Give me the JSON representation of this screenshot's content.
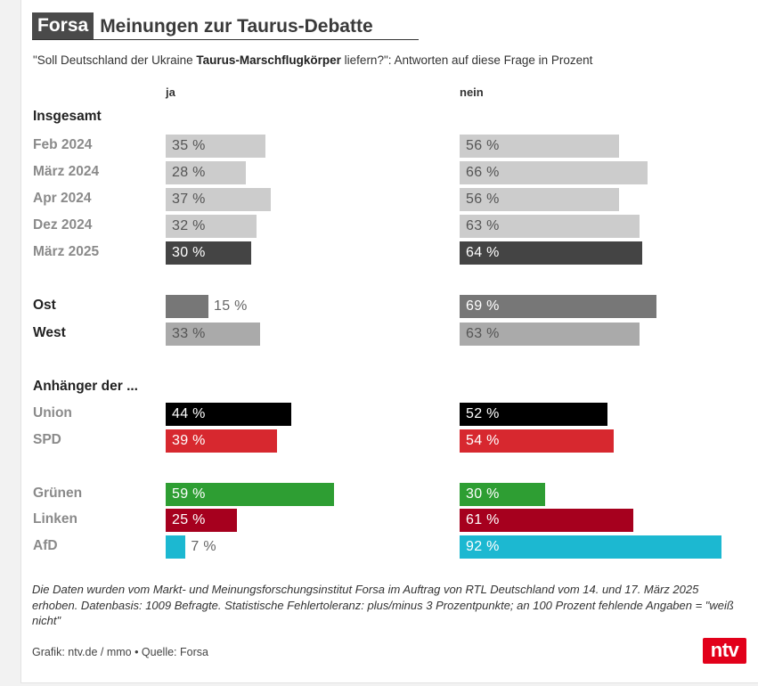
{
  "header": {
    "brand": "Forsa",
    "title": "Meinungen zur Taurus-Debatte",
    "subtitle_pre": "\"Soll Deutschland der Ukraine ",
    "subtitle_bold": "Taurus-Marschflugkörper",
    "subtitle_post": " liefern?\": Antworten auf diese Frage in Prozent"
  },
  "chart_data": {
    "type": "bar",
    "orientation": "horizontal",
    "columns": [
      "ja",
      "nein"
    ],
    "unit": "%",
    "groups": [
      {
        "label": "Insgesamt",
        "rows": [
          {
            "label": "Feb 2024",
            "ja": 35,
            "nein": 56,
            "ja_label": "35 %",
            "nein_label": "56 %"
          },
          {
            "label": "März 2024",
            "ja": 28,
            "nein": 66,
            "ja_label": "28 %",
            "nein_label": "66 %"
          },
          {
            "label": "Apr 2024",
            "ja": 37,
            "nein": 56,
            "ja_label": "37 %",
            "nein_label": "56 %"
          },
          {
            "label": "Dez 2024",
            "ja": 32,
            "nein": 63,
            "ja_label": "32 %",
            "nein_label": "63 %"
          },
          {
            "label": "März 2025",
            "ja": 30,
            "nein": 64,
            "ja_label": "30 %",
            "nein_label": "64 %"
          }
        ]
      },
      {
        "label": "",
        "rows": [
          {
            "label": "Ost",
            "ja": 15,
            "nein": 69,
            "ja_label": "15 %",
            "nein_label": "69 %"
          },
          {
            "label": "West",
            "ja": 33,
            "nein": 63,
            "ja_label": "33 %",
            "nein_label": "63 %"
          }
        ]
      },
      {
        "label": "Anhänger der ...",
        "rows": [
          {
            "label": "Union",
            "ja": 44,
            "nein": 52,
            "ja_label": "44 %",
            "nein_label": "52 %"
          },
          {
            "label": "SPD",
            "ja": 39,
            "nein": 54,
            "ja_label": "39 %",
            "nein_label": "54 %"
          },
          {
            "label": "Grünen",
            "ja": 59,
            "nein": 30,
            "ja_label": "59 %",
            "nein_label": "30 %"
          },
          {
            "label": "Linken",
            "ja": 25,
            "nein": 61,
            "ja_label": "25 %",
            "nein_label": "61 %"
          },
          {
            "label": "AfD",
            "ja": 7,
            "nein": 92,
            "ja_label": "7 %",
            "nein_label": "92 %"
          }
        ]
      }
    ],
    "colors": {
      "Feb 2024": "#cccccc",
      "März 2024": "#cccccc",
      "Apr 2024": "#cccccc",
      "Dez 2024": "#cccccc",
      "März 2025": "#444444",
      "Ost": "#777777",
      "West": "#aaaaaa",
      "Union": "#000000",
      "SPD": "#d7282f",
      "Grünen": "#2e9e33",
      "Linken": "#a6001e",
      "AfD": "#1cb8d1"
    }
  },
  "footer": {
    "note": "Die Daten wurden vom Markt- und Meinungsforschungsinstitut Forsa im Auftrag von RTL Deutschland vom 14. und 17. März 2025 erhoben. Datenbasis: 1009 Befragte. Statistische Fehlertoleranz: plus/minus 3 Prozentpunkte; an 100 Prozent fehlende Angaben = \"weiß nicht\"",
    "credit": "Grafik: ntv.de / mmo • Quelle: Forsa",
    "logo": "ntv"
  }
}
